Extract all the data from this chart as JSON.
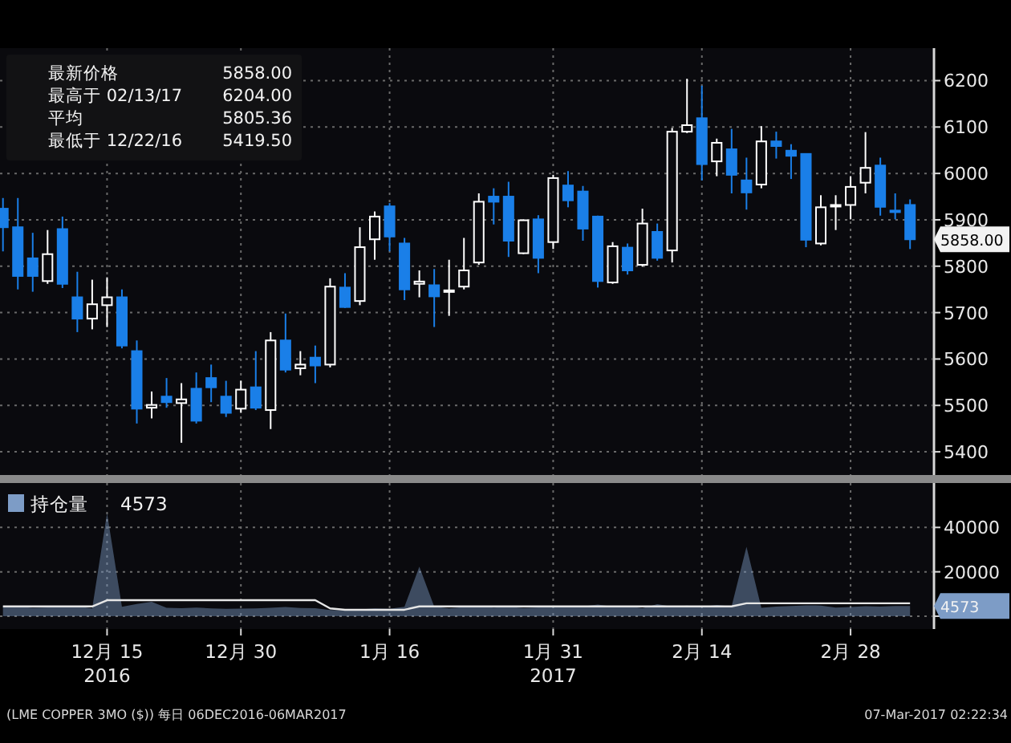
{
  "chart_data": [
    {
      "type": "candlestick",
      "grid": true,
      "tick_labels": "y",
      "ylim": [
        5350,
        6270
      ],
      "yticks": [
        5400,
        5500,
        5600,
        5700,
        5800,
        5900,
        6000,
        6100,
        6200
      ],
      "categories": [
        null,
        null,
        null,
        null,
        null,
        null,
        null,
        null,
        null,
        null,
        null,
        null,
        null,
        null,
        null,
        null,
        null,
        null,
        null,
        null,
        null,
        null,
        null,
        null,
        null,
        null,
        null,
        null,
        null,
        null,
        null,
        null,
        null,
        null,
        null,
        null,
        null,
        null,
        null,
        null,
        null,
        null,
        null,
        null,
        null,
        null,
        null,
        null,
        null,
        null,
        null,
        null,
        null,
        null,
        null,
        null,
        null,
        null,
        null,
        null,
        null,
        null
      ],
      "ohlc": [
        [
          5924,
          5947,
          5832,
          5884
        ],
        [
          5884,
          5947,
          5750,
          5779
        ],
        [
          5817,
          5872,
          5745,
          5779
        ],
        [
          5768,
          5878,
          5762,
          5826
        ],
        [
          5880,
          5907,
          5753,
          5762
        ],
        [
          5733,
          5788,
          5658,
          5687
        ],
        [
          5687,
          5771,
          5664,
          5718
        ],
        [
          5716,
          5776,
          5669,
          5733
        ],
        [
          5733,
          5750,
          5623,
          5629
        ],
        [
          5617,
          5640,
          5461,
          5493
        ],
        [
          5495,
          5530,
          5472,
          5501
        ],
        [
          5519,
          5559,
          5495,
          5507
        ],
        [
          5505,
          5548,
          5419.5,
          5513
        ],
        [
          5536,
          5571,
          5461,
          5467
        ],
        [
          5559,
          5588,
          5507,
          5539
        ],
        [
          5519,
          5553,
          5475,
          5484
        ],
        [
          5493,
          5553,
          5484,
          5534
        ],
        [
          5539,
          5617,
          5490,
          5495
        ],
        [
          5490,
          5658,
          5449,
          5640
        ],
        [
          5640,
          5698,
          5571,
          5577
        ],
        [
          5580,
          5617,
          5565,
          5588
        ],
        [
          5603,
          5629,
          5548,
          5586
        ],
        [
          5588,
          5774,
          5582,
          5756
        ],
        [
          5754,
          5785,
          5710,
          5712
        ],
        [
          5725,
          5884,
          5716,
          5841
        ],
        [
          5858,
          5918,
          5814,
          5907
        ],
        [
          5929,
          5936,
          5832,
          5864
        ],
        [
          5849,
          5861,
          5727,
          5750
        ],
        [
          5762,
          5791,
          5733,
          5767
        ],
        [
          5759,
          5794,
          5669,
          5735
        ],
        [
          5745,
          5814,
          5693,
          5748
        ],
        [
          5756,
          5861,
          5750,
          5791
        ],
        [
          5808,
          5957,
          5803,
          5939
        ],
        [
          5950,
          5968,
          5890,
          5939
        ],
        [
          5950,
          5982,
          5820,
          5855
        ],
        [
          5828,
          5901,
          5826,
          5899
        ],
        [
          5901,
          5910,
          5785,
          5818
        ],
        [
          5852,
          5997,
          5837,
          5990
        ],
        [
          5974,
          6005,
          5927,
          5942
        ],
        [
          5961,
          5973,
          5855,
          5881
        ],
        [
          5907,
          5909,
          5754,
          5768
        ],
        [
          5765,
          5852,
          5762,
          5843
        ],
        [
          5840,
          5849,
          5782,
          5791
        ],
        [
          5803,
          5924,
          5799,
          5892
        ],
        [
          5874,
          5892,
          5812,
          5818
        ],
        [
          5834,
          6098,
          5808,
          6090
        ],
        [
          6090,
          6204,
          6087,
          6104
        ],
        [
          6119,
          6189,
          5985,
          6020
        ],
        [
          6026,
          6075,
          5994,
          6066
        ],
        [
          6052,
          6096,
          5957,
          5997
        ],
        [
          5985,
          6034,
          5922,
          5959
        ],
        [
          5976,
          6102,
          5968,
          6069
        ],
        [
          6069,
          6090,
          6032,
          6059
        ],
        [
          6049,
          6063,
          5988,
          6038
        ],
        [
          6042,
          6042,
          5841,
          5857
        ],
        [
          5849,
          5953,
          5845,
          5927
        ],
        [
          5930,
          5953,
          5878,
          5932
        ],
        [
          5932,
          5994,
          5901,
          5971
        ],
        [
          5980,
          6089,
          5957,
          6012
        ],
        [
          6017,
          6034,
          5909,
          5928
        ],
        [
          5920,
          5957,
          5901,
          5918
        ],
        [
          5932,
          5944,
          5837,
          5858
        ]
      ],
      "colors": [
        "#1a7fe8",
        "#1a7fe8",
        "#1a7fe8",
        "#ffffff",
        "#1a7fe8",
        "#1a7fe8",
        "#ffffff",
        "#ffffff",
        "#1a7fe8",
        "#1a7fe8",
        "#ffffff",
        "#1a7fe8",
        "#ffffff",
        "#1a7fe8",
        "#1a7fe8",
        "#1a7fe8",
        "#ffffff",
        "#1a7fe8",
        "#ffffff",
        "#1a7fe8",
        "#ffffff",
        "#1a7fe8",
        "#ffffff",
        "#1a7fe8",
        "#ffffff",
        "#ffffff",
        "#1a7fe8",
        "#1a7fe8",
        "#ffffff",
        "#1a7fe8",
        "#ffffff",
        "#ffffff",
        "#ffffff",
        "#1a7fe8",
        "#1a7fe8",
        "#ffffff",
        "#1a7fe8",
        "#ffffff",
        "#1a7fe8",
        "#1a7fe8",
        "#1a7fe8",
        "#ffffff",
        "#1a7fe8",
        "#ffffff",
        "#1a7fe8",
        "#ffffff",
        "#ffffff",
        "#1a7fe8",
        "#ffffff",
        "#1a7fe8",
        "#1a7fe8",
        "#ffffff",
        "#1a7fe8",
        "#1a7fe8",
        "#1a7fe8",
        "#ffffff",
        "#ffffff",
        "#ffffff",
        "#ffffff",
        "#1a7fe8",
        "#1a7fe8",
        "#1a7fe8"
      ],
      "annotations": [
        "最新价格 5858.00",
        "最高于 02/13/17 6204.00",
        "平均 5805.36",
        "最低于 12/22/16 5419.50",
        "5858.00"
      ]
    },
    {
      "type": "area",
      "grid": true,
      "legend": "top left",
      "ylim": [
        -5800,
        60000
      ],
      "yticks": [
        {
          "value": 0,
          "label": null
        },
        20000,
        40000
      ],
      "categories": [
        null,
        null,
        null,
        null,
        null,
        null,
        null,
        "12月 15\n2016",
        null,
        null,
        null,
        null,
        null,
        null,
        null,
        null,
        "12月 30",
        null,
        null,
        null,
        null,
        null,
        null,
        null,
        null,
        null,
        "1月 16",
        null,
        null,
        null,
        null,
        null,
        null,
        null,
        null,
        null,
        null,
        "1月 31\n2017",
        null,
        null,
        null,
        null,
        null,
        null,
        null,
        null,
        null,
        "2月 14",
        null,
        null,
        null,
        null,
        null,
        null,
        null,
        null,
        null,
        "2月 28",
        null,
        null,
        null,
        null
      ],
      "series": [
        {
          "name": "持仓量",
          "type": "area",
          "color": "#7d9cc6",
          "values": [
            4600,
            4300,
            3800,
            4000,
            4200,
            4500,
            3500,
            46400,
            4200,
            5500,
            6500,
            3800,
            3600,
            3900,
            3500,
            3300,
            3400,
            3500,
            3800,
            4100,
            3700,
            3600,
            2800,
            2600,
            3100,
            3500,
            3300,
            4200,
            22300,
            4300,
            3500,
            4100,
            4500,
            3900,
            4200,
            3700,
            4000,
            4800,
            4100,
            4400,
            5200,
            4300,
            4600,
            3600,
            5400,
            4300,
            4800,
            4200,
            5000,
            4400,
            31300,
            3800,
            4300,
            4600,
            4900,
            4800,
            3900,
            4100,
            4500,
            4300,
            4600,
            4573
          ]
        },
        {
          "type": "line",
          "color": "#e6e6e6",
          "values": [
            4400,
            4400,
            4400,
            4400,
            4400,
            4400,
            4400,
            7200,
            7200,
            7200,
            7200,
            7200,
            7200,
            7200,
            7200,
            7200,
            7200,
            7200,
            7200,
            7200,
            7200,
            7200,
            3500,
            2900,
            2900,
            2900,
            2900,
            2900,
            4400,
            4400,
            4400,
            4400,
            4400,
            4400,
            4400,
            4400,
            4400,
            4400,
            4400,
            4400,
            4400,
            4400,
            4400,
            4400,
            4400,
            4400,
            4400,
            4400,
            4400,
            4400,
            5800,
            5800,
            5800,
            5800,
            5800,
            5800,
            5800,
            5800,
            5800,
            5800,
            5800,
            5800
          ]
        }
      ],
      "annotations": [
        "4573",
        "4573",
        "(LME COPPER   3MO ($))   每日 06DEC2016-06MAR2017",
        "07-Mar-2017 02:22:34"
      ]
    }
  ]
}
